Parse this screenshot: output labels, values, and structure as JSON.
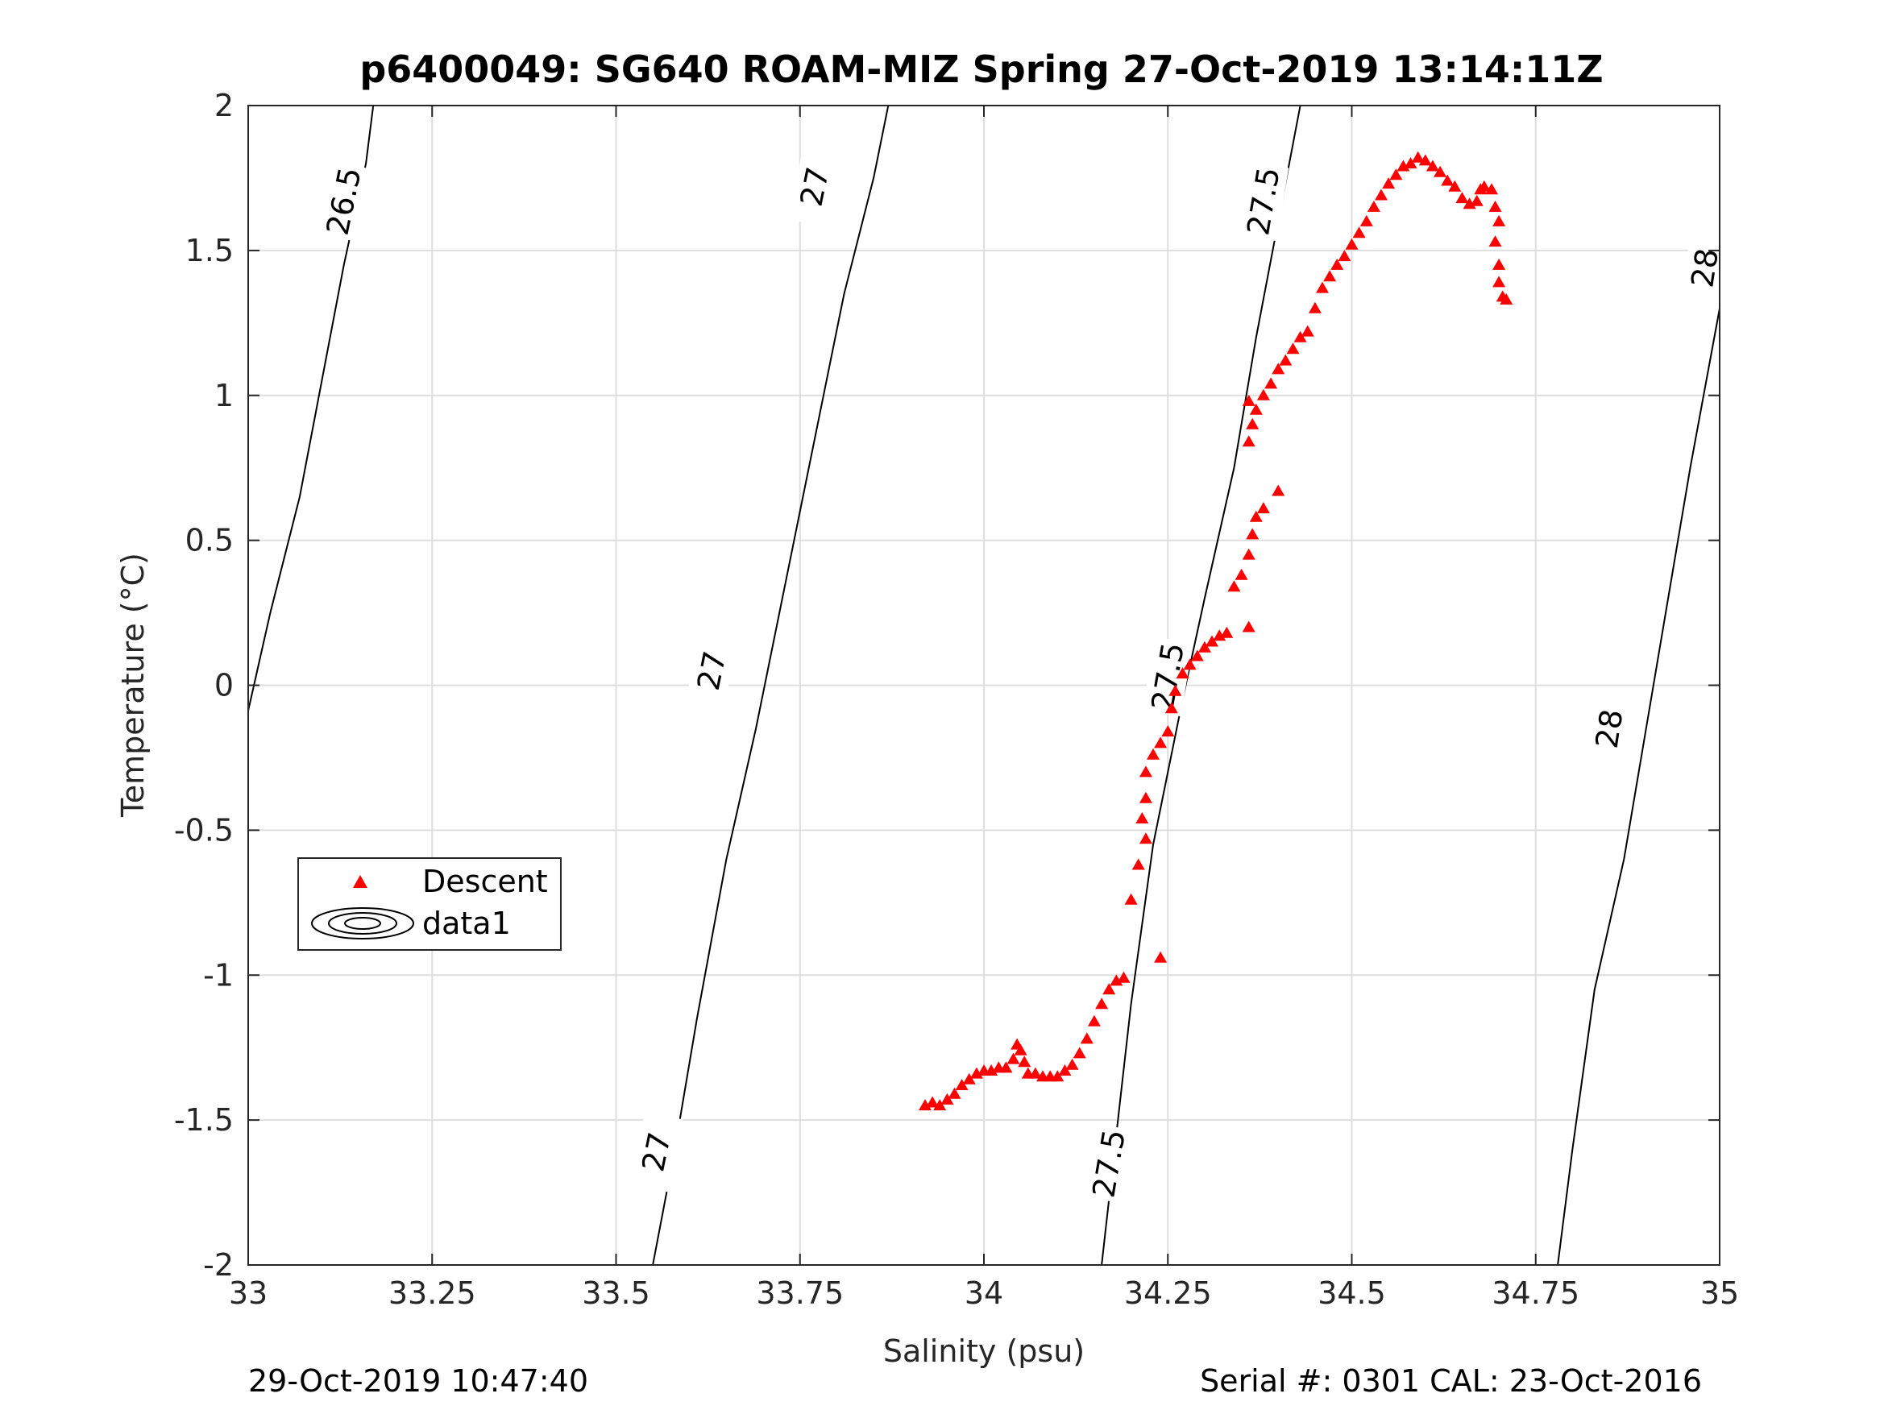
{
  "title": "p6400049: SG640 ROAM-MIZ Spring 27-Oct-2019 13:14:11Z",
  "footer": {
    "left": "29-Oct-2019 10:47:40",
    "right": "Serial #: 0301  CAL: 23-Oct-2016"
  },
  "chart_data": {
    "type": "scatter",
    "xlabel": "Salinity (psu)",
    "ylabel": "Temperature (°C)",
    "xlim": [
      33,
      35
    ],
    "ylim": [
      -2,
      2
    ],
    "xticks": [
      {
        "value": 33,
        "label": "33"
      },
      {
        "value": 33.25,
        "label": "33.25"
      },
      {
        "value": 33.5,
        "label": "33.5"
      },
      {
        "value": 33.75,
        "label": "33.75"
      },
      {
        "value": 34,
        "label": "34"
      },
      {
        "value": 34.25,
        "label": "34.25"
      },
      {
        "value": 34.5,
        "label": "34.5"
      },
      {
        "value": 34.75,
        "label": "34.75"
      },
      {
        "value": 35,
        "label": "35"
      }
    ],
    "yticks": [
      {
        "value": 2,
        "label": "2"
      },
      {
        "value": 1.5,
        "label": "1.5"
      },
      {
        "value": 1,
        "label": "1"
      },
      {
        "value": 0.5,
        "label": "0.5"
      },
      {
        "value": 0,
        "label": "0"
      },
      {
        "value": -0.5,
        "label": "-0.5"
      },
      {
        "value": -1,
        "label": "-1"
      },
      {
        "value": -1.5,
        "label": "-1.5"
      },
      {
        "value": -2,
        "label": "-2"
      }
    ],
    "grid": true,
    "legend": {
      "position": "left-middle",
      "entries": [
        {
          "label": "Descent",
          "marker": "triangle",
          "color": "#ff0000"
        },
        {
          "label": "data1",
          "marker": "contour",
          "color": "#000000"
        }
      ]
    },
    "contours": [
      {
        "level_label": "26.5",
        "points": [
          [
            32.99,
            -0.2
          ],
          [
            33.03,
            0.25
          ],
          [
            33.07,
            0.65
          ],
          [
            33.1,
            1.05
          ],
          [
            33.13,
            1.45
          ],
          [
            33.16,
            1.8
          ],
          [
            33.17,
            2.0
          ]
        ],
        "label_positions": [
          {
            "x": 33.13,
            "y": 1.67
          }
        ]
      },
      {
        "level_label": "27",
        "points": [
          [
            33.55,
            -2.0
          ],
          [
            33.58,
            -1.6
          ],
          [
            33.61,
            -1.15
          ],
          [
            33.65,
            -0.6
          ],
          [
            33.69,
            -0.15
          ],
          [
            33.73,
            0.35
          ],
          [
            33.77,
            0.85
          ],
          [
            33.81,
            1.35
          ],
          [
            33.85,
            1.75
          ],
          [
            33.87,
            2.0
          ]
        ],
        "label_positions": [
          {
            "x": 33.555,
            "y": -1.61
          },
          {
            "x": 33.63,
            "y": 0.05
          },
          {
            "x": 33.77,
            "y": 1.72
          }
        ]
      },
      {
        "level_label": "27.5",
        "points": [
          [
            34.16,
            -2.0
          ],
          [
            34.18,
            -1.55
          ],
          [
            34.2,
            -1.1
          ],
          [
            34.23,
            -0.55
          ],
          [
            34.27,
            -0.05
          ],
          [
            34.3,
            0.3
          ],
          [
            34.34,
            0.75
          ],
          [
            34.37,
            1.2
          ],
          [
            34.4,
            1.6
          ],
          [
            34.43,
            2.0
          ]
        ],
        "label_positions": [
          {
            "x": 34.17,
            "y": -1.65
          },
          {
            "x": 34.25,
            "y": 0.03
          },
          {
            "x": 34.38,
            "y": 1.67
          }
        ]
      },
      {
        "level_label": "28",
        "points": [
          [
            34.78,
            -2.0
          ],
          [
            34.8,
            -1.6
          ],
          [
            34.83,
            -1.05
          ],
          [
            34.87,
            -0.6
          ],
          [
            34.9,
            -0.15
          ],
          [
            34.93,
            0.3
          ],
          [
            34.96,
            0.75
          ],
          [
            35.0,
            1.3
          ],
          [
            35.0,
            1.65
          ]
        ],
        "label_positions": [
          {
            "x": 34.85,
            "y": -0.15
          },
          {
            "x": 34.98,
            "y": 1.44
          }
        ]
      }
    ],
    "series": [
      {
        "name": "Descent",
        "marker": "triangle",
        "color": "#ff0000",
        "points": [
          [
            33.92,
            -1.45
          ],
          [
            33.93,
            -1.44
          ],
          [
            33.94,
            -1.45
          ],
          [
            33.95,
            -1.43
          ],
          [
            33.96,
            -1.41
          ],
          [
            33.97,
            -1.38
          ],
          [
            33.98,
            -1.36
          ],
          [
            33.99,
            -1.34
          ],
          [
            34.0,
            -1.33
          ],
          [
            34.01,
            -1.33
          ],
          [
            34.02,
            -1.32
          ],
          [
            34.03,
            -1.32
          ],
          [
            34.04,
            -1.29
          ],
          [
            34.045,
            -1.24
          ],
          [
            34.05,
            -1.26
          ],
          [
            34.055,
            -1.3
          ],
          [
            34.06,
            -1.34
          ],
          [
            34.07,
            -1.34
          ],
          [
            34.08,
            -1.35
          ],
          [
            34.09,
            -1.35
          ],
          [
            34.1,
            -1.35
          ],
          [
            34.11,
            -1.33
          ],
          [
            34.12,
            -1.31
          ],
          [
            34.13,
            -1.27
          ],
          [
            34.14,
            -1.22
          ],
          [
            34.15,
            -1.16
          ],
          [
            34.16,
            -1.1
          ],
          [
            34.17,
            -1.05
          ],
          [
            34.18,
            -1.02
          ],
          [
            34.19,
            -1.01
          ],
          [
            34.24,
            -0.94
          ],
          [
            34.2,
            -0.74
          ],
          [
            34.21,
            -0.62
          ],
          [
            34.22,
            -0.53
          ],
          [
            34.215,
            -0.46
          ],
          [
            34.22,
            -0.39
          ],
          [
            34.22,
            -0.3
          ],
          [
            34.23,
            -0.24
          ],
          [
            34.24,
            -0.2
          ],
          [
            34.25,
            -0.16
          ],
          [
            34.255,
            -0.08
          ],
          [
            34.26,
            -0.02
          ],
          [
            34.27,
            0.04
          ],
          [
            34.28,
            0.07
          ],
          [
            34.29,
            0.1
          ],
          [
            34.3,
            0.13
          ],
          [
            34.31,
            0.15
          ],
          [
            34.32,
            0.17
          ],
          [
            34.33,
            0.18
          ],
          [
            34.36,
            0.2
          ],
          [
            34.34,
            0.34
          ],
          [
            34.35,
            0.38
          ],
          [
            34.36,
            0.45
          ],
          [
            34.365,
            0.52
          ],
          [
            34.37,
            0.58
          ],
          [
            34.38,
            0.61
          ],
          [
            34.4,
            0.67
          ],
          [
            34.36,
            0.84
          ],
          [
            34.365,
            0.9
          ],
          [
            34.37,
            0.95
          ],
          [
            34.36,
            0.98
          ],
          [
            34.38,
            1.0
          ],
          [
            34.39,
            1.04
          ],
          [
            34.4,
            1.09
          ],
          [
            34.41,
            1.12
          ],
          [
            34.42,
            1.16
          ],
          [
            34.43,
            1.2
          ],
          [
            34.44,
            1.22
          ],
          [
            34.45,
            1.3
          ],
          [
            34.46,
            1.37
          ],
          [
            34.47,
            1.41
          ],
          [
            34.48,
            1.45
          ],
          [
            34.49,
            1.48
          ],
          [
            34.5,
            1.52
          ],
          [
            34.51,
            1.56
          ],
          [
            34.52,
            1.6
          ],
          [
            34.53,
            1.65
          ],
          [
            34.54,
            1.69
          ],
          [
            34.55,
            1.73
          ],
          [
            34.56,
            1.76
          ],
          [
            34.57,
            1.79
          ],
          [
            34.58,
            1.8
          ],
          [
            34.59,
            1.82
          ],
          [
            34.6,
            1.81
          ],
          [
            34.61,
            1.79
          ],
          [
            34.62,
            1.77
          ],
          [
            34.63,
            1.74
          ],
          [
            34.64,
            1.72
          ],
          [
            34.65,
            1.68
          ],
          [
            34.66,
            1.66
          ],
          [
            34.67,
            1.67
          ],
          [
            34.675,
            1.71
          ],
          [
            34.68,
            1.72
          ],
          [
            34.69,
            1.71
          ],
          [
            34.695,
            1.65
          ],
          [
            34.7,
            1.6
          ],
          [
            34.695,
            1.53
          ],
          [
            34.7,
            1.45
          ],
          [
            34.7,
            1.39
          ],
          [
            34.705,
            1.34
          ],
          [
            34.71,
            1.33
          ]
        ]
      }
    ]
  }
}
